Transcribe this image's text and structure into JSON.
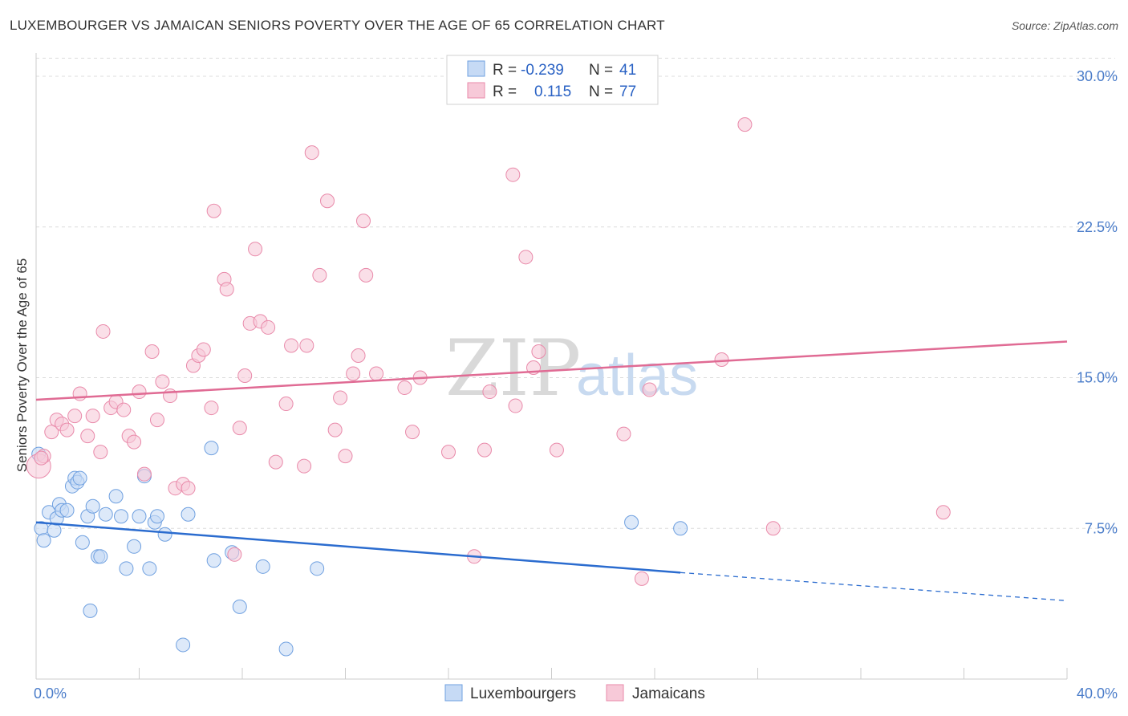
{
  "title": "LUXEMBOURGER VS JAMAICAN SENIORS POVERTY OVER THE AGE OF 65 CORRELATION CHART",
  "source": "Source: ZipAtlas.com",
  "watermark": {
    "zip": "ZIP",
    "atlas": "atlas"
  },
  "chart_data": {
    "type": "scatter",
    "xlabel": "",
    "ylabel": "Seniors Poverty Over the Age of 65",
    "xlim": [
      0,
      40
    ],
    "ylim": [
      0,
      31
    ],
    "x_tick_labels": [
      {
        "value": 0,
        "label": "0.0%"
      },
      {
        "value": 40,
        "label": "40.0%"
      }
    ],
    "y_tick_labels": [
      {
        "value": 7.5,
        "label": "7.5%"
      },
      {
        "value": 15,
        "label": "15.0%"
      },
      {
        "value": 22.5,
        "label": "22.5%"
      },
      {
        "value": 30,
        "label": "30.0%"
      }
    ],
    "series": [
      {
        "name": "Luxembourgers",
        "color": "#6fa0e0",
        "fill": "#c6daf5",
        "trend_color": "#2b6ccf",
        "R": "-0.239",
        "N": "41",
        "trend": {
          "x0": 0,
          "y0": 7.8,
          "x1": 25,
          "y1": 5.3,
          "dash_x1": 40,
          "dash_y1": 3.9
        },
        "points": [
          [
            0.1,
            11.2
          ],
          [
            0.2,
            7.5
          ],
          [
            0.3,
            6.9
          ],
          [
            0.5,
            8.3
          ],
          [
            0.7,
            7.4
          ],
          [
            0.8,
            8.0
          ],
          [
            0.9,
            8.7
          ],
          [
            1.0,
            8.4
          ],
          [
            1.2,
            8.4
          ],
          [
            1.4,
            9.6
          ],
          [
            1.5,
            10.0
          ],
          [
            1.6,
            9.8
          ],
          [
            1.7,
            10.0
          ],
          [
            1.8,
            6.8
          ],
          [
            2.0,
            8.1
          ],
          [
            2.1,
            3.4
          ],
          [
            2.2,
            8.6
          ],
          [
            2.4,
            6.1
          ],
          [
            2.5,
            6.1
          ],
          [
            2.7,
            8.2
          ],
          [
            3.1,
            9.1
          ],
          [
            3.3,
            8.1
          ],
          [
            3.5,
            5.5
          ],
          [
            3.8,
            6.6
          ],
          [
            4.0,
            8.1
          ],
          [
            4.2,
            10.1
          ],
          [
            4.4,
            5.5
          ],
          [
            4.6,
            7.8
          ],
          [
            4.7,
            8.1
          ],
          [
            5.0,
            7.2
          ],
          [
            5.7,
            1.7
          ],
          [
            5.9,
            8.2
          ],
          [
            6.8,
            11.5
          ],
          [
            6.9,
            5.9
          ],
          [
            7.6,
            6.3
          ],
          [
            7.9,
            3.6
          ],
          [
            8.8,
            5.6
          ],
          [
            9.7,
            1.5
          ],
          [
            10.9,
            5.5
          ],
          [
            23.1,
            7.8
          ],
          [
            25.0,
            7.5
          ]
        ]
      },
      {
        "name": "Jamaicans",
        "color": "#e98aaa",
        "fill": "#f7c9d8",
        "trend_color": "#e06b94",
        "R": "0.115",
        "N": "77",
        "trend": {
          "x0": 0,
          "y0": 13.9,
          "x1": 40,
          "y1": 16.8
        },
        "points": [
          [
            0.1,
            10.6
          ],
          [
            0.3,
            11.1
          ],
          [
            0.6,
            12.3
          ],
          [
            0.8,
            12.9
          ],
          [
            1.0,
            12.7
          ],
          [
            1.2,
            12.4
          ],
          [
            1.5,
            13.1
          ],
          [
            1.7,
            14.2
          ],
          [
            2.0,
            12.1
          ],
          [
            2.2,
            13.1
          ],
          [
            2.5,
            11.3
          ],
          [
            2.6,
            17.3
          ],
          [
            2.9,
            13.5
          ],
          [
            3.1,
            13.8
          ],
          [
            3.4,
            13.4
          ],
          [
            3.6,
            12.1
          ],
          [
            3.8,
            11.8
          ],
          [
            4.0,
            14.3
          ],
          [
            4.2,
            10.2
          ],
          [
            4.5,
            16.3
          ],
          [
            4.7,
            12.9
          ],
          [
            4.9,
            14.8
          ],
          [
            5.2,
            14.1
          ],
          [
            5.4,
            9.5
          ],
          [
            5.7,
            9.7
          ],
          [
            5.9,
            9.5
          ],
          [
            6.1,
            15.6
          ],
          [
            6.3,
            16.1
          ],
          [
            6.5,
            16.4
          ],
          [
            6.8,
            13.5
          ],
          [
            6.9,
            23.3
          ],
          [
            7.3,
            19.9
          ],
          [
            7.4,
            19.4
          ],
          [
            7.7,
            6.2
          ],
          [
            7.9,
            12.5
          ],
          [
            8.1,
            15.1
          ],
          [
            8.3,
            17.7
          ],
          [
            8.5,
            21.4
          ],
          [
            8.7,
            17.8
          ],
          [
            9.0,
            17.5
          ],
          [
            9.3,
            10.8
          ],
          [
            9.7,
            13.7
          ],
          [
            9.9,
            16.6
          ],
          [
            10.4,
            10.6
          ],
          [
            10.5,
            16.6
          ],
          [
            10.7,
            26.2
          ],
          [
            11.0,
            20.1
          ],
          [
            11.3,
            23.8
          ],
          [
            11.6,
            12.4
          ],
          [
            11.8,
            14.0
          ],
          [
            12.0,
            11.1
          ],
          [
            12.3,
            15.2
          ],
          [
            12.5,
            16.1
          ],
          [
            12.7,
            22.8
          ],
          [
            12.8,
            20.1
          ],
          [
            13.2,
            15.2
          ],
          [
            14.3,
            14.5
          ],
          [
            14.6,
            12.3
          ],
          [
            14.9,
            15.0
          ],
          [
            16.0,
            11.3
          ],
          [
            17.0,
            6.1
          ],
          [
            17.4,
            11.4
          ],
          [
            17.6,
            14.3
          ],
          [
            18.5,
            25.1
          ],
          [
            18.6,
            13.6
          ],
          [
            19.0,
            21.0
          ],
          [
            19.3,
            15.5
          ],
          [
            19.5,
            16.3
          ],
          [
            20.2,
            11.4
          ],
          [
            22.8,
            12.2
          ],
          [
            23.5,
            5.0
          ],
          [
            23.8,
            14.4
          ],
          [
            26.6,
            15.9
          ],
          [
            27.5,
            27.6
          ],
          [
            28.6,
            7.5
          ],
          [
            35.2,
            8.3
          ],
          [
            0.2,
            11.0
          ]
        ]
      }
    ],
    "legend": {
      "r_label": "R =",
      "n_label": "N =",
      "placement": "top-center"
    }
  }
}
